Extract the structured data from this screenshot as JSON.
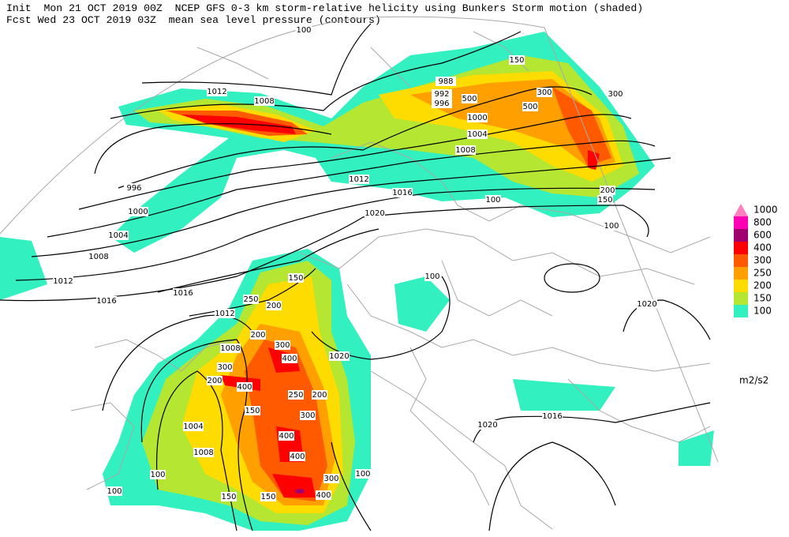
{
  "header": {
    "line1": "Init  Mon 21 OCT 2019 00Z  NCEP GFS 0-3 km storm-relative helicity using Bunkers Storm motion (shaded)",
    "line2": "Fcst Wed 23 OCT 2019 03Z  mean sea level pressure (contours)"
  },
  "legend": {
    "levels": [
      1000,
      800,
      600,
      400,
      300,
      250,
      200,
      150,
      100
    ],
    "colors": [
      "#ff80c0",
      "#ff00b4",
      "#a0006e",
      "#ff0000",
      "#ff5a00",
      "#ffa000",
      "#ffdc00",
      "#b4e632",
      "#32f0c0"
    ],
    "unit": "m2/s2"
  },
  "contour_labels": [
    "1012",
    "1008",
    "996",
    "1000",
    "1004",
    "1008",
    "1012",
    "1016",
    "1016",
    "1012",
    "1008",
    "1004",
    "1008",
    "988",
    "992",
    "996",
    "1000",
    "1004",
    "1008",
    "1012",
    "1016",
    "1020",
    "1020",
    "1020",
    "1016",
    "1020"
  ],
  "shading_labels": [
    "100",
    "150",
    "300",
    "500",
    "500",
    "300",
    "200",
    "150",
    "100",
    "100",
    "100",
    "150",
    "250",
    "200",
    "200",
    "300",
    "400",
    "400",
    "300",
    "200",
    "250",
    "200",
    "150",
    "300",
    "400",
    "400",
    "300",
    "400",
    "150",
    "150",
    "100",
    "100",
    "100"
  ]
}
